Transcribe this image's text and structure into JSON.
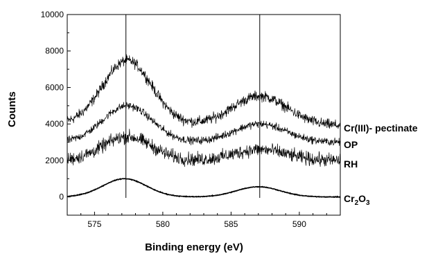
{
  "chart_data": {
    "type": "line",
    "title": "",
    "xlabel": "Binding energy (eV)",
    "ylabel": "Counts",
    "xlim": [
      573,
      593
    ],
    "ylim": [
      -1000,
      10000
    ],
    "x_ticks": [
      575,
      580,
      585,
      590
    ],
    "y_ticks": [
      0,
      2000,
      4000,
      6000,
      8000,
      10000
    ],
    "grid": false,
    "reference_lines_x": [
      577.3,
      587.1
    ],
    "series": [
      {
        "name": "Cr(III)- pectinate",
        "peaks": [
          {
            "center": 577.4,
            "height": 3500,
            "width": 1.8
          },
          {
            "center": 587.1,
            "height": 1600,
            "width": 2.0
          }
        ],
        "baseline": [
          4000,
          3900
        ],
        "noise": 250
      },
      {
        "name": "OP",
        "peaks": [
          {
            "center": 577.4,
            "height": 2000,
            "width": 1.8
          },
          {
            "center": 587.1,
            "height": 1000,
            "width": 1.9
          }
        ],
        "baseline": [
          3000,
          3000
        ],
        "noise": 180
      },
      {
        "name": "RH",
        "peaks": [
          {
            "center": 577.4,
            "height": 1300,
            "width": 1.8
          },
          {
            "center": 587.1,
            "height": 600,
            "width": 1.9
          }
        ],
        "baseline": [
          2000,
          2000
        ],
        "noise": 320
      },
      {
        "name_main": "Cr",
        "name_sub1": "2",
        "name_mid": "O",
        "name_sub2": "3",
        "peaks": [
          {
            "center": 577.2,
            "height": 1000,
            "width": 1.6
          },
          {
            "center": 587.0,
            "height": 560,
            "width": 1.6
          }
        ],
        "baseline": [
          0,
          0
        ],
        "noise": 15
      }
    ]
  }
}
